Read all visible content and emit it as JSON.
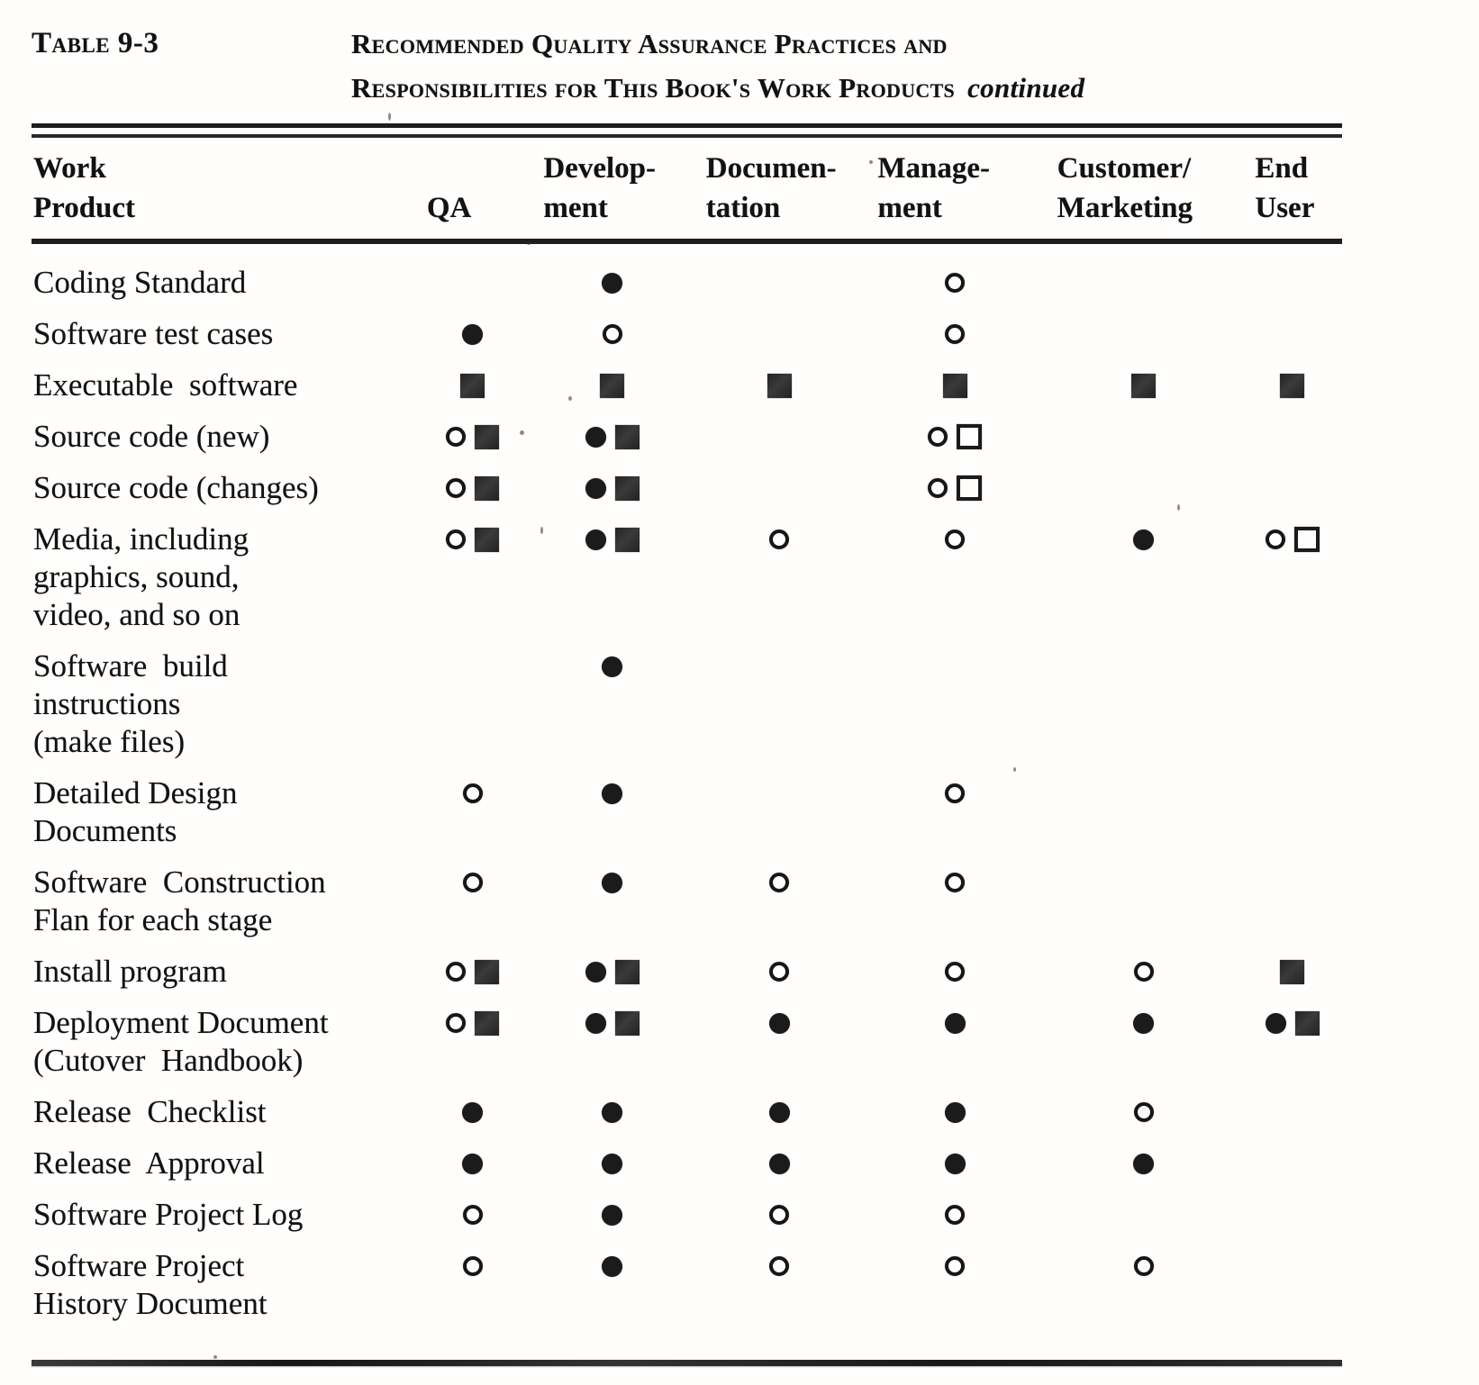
{
  "header": {
    "table_label": "Table 9-3",
    "title_line1": "Recommended Quality Assurance Practices and",
    "title_line2": "Responsibilities for This Book's Work Products",
    "continued_label": "continued"
  },
  "columns": [
    {
      "line1": "Work",
      "line2": "Product"
    },
    {
      "line1": "",
      "line2": "QA"
    },
    {
      "line1": "Develop-",
      "line2": "ment"
    },
    {
      "line1": "Documen-",
      "line2": "tation"
    },
    {
      "line1": "Manage-",
      "line2": "ment"
    },
    {
      "line1": "Customer/",
      "line2": "Marketing"
    },
    {
      "line1": "End",
      "line2": "User"
    }
  ],
  "symbols_used": [
    "filled-circle",
    "open-circle",
    "filled-square",
    "open-square"
  ],
  "rows": [
    {
      "label_lines": [
        "Coding Standard"
      ],
      "cells": [
        [],
        [
          "filled-circle"
        ],
        [],
        [
          "open-circle"
        ],
        [],
        []
      ]
    },
    {
      "label_lines": [
        "Software test cases"
      ],
      "cells": [
        [
          "filled-circle"
        ],
        [
          "open-circle"
        ],
        [],
        [
          "open-circle"
        ],
        [],
        []
      ]
    },
    {
      "label_lines": [
        "Executable  software"
      ],
      "cells": [
        [
          "filled-square"
        ],
        [
          "filled-square"
        ],
        [
          "filled-square"
        ],
        [
          "filled-square"
        ],
        [
          "filled-square"
        ],
        [
          "filled-square"
        ]
      ]
    },
    {
      "label_lines": [
        "Source code (new)"
      ],
      "cells": [
        [
          "open-circle",
          "filled-square"
        ],
        [
          "filled-circle",
          "filled-square"
        ],
        [],
        [
          "open-circle",
          "open-square"
        ],
        [],
        []
      ]
    },
    {
      "label_lines": [
        "Source code (changes)"
      ],
      "cells": [
        [
          "open-circle",
          "filled-square"
        ],
        [
          "filled-circle",
          "filled-square"
        ],
        [],
        [
          "open-circle",
          "open-square"
        ],
        [],
        []
      ]
    },
    {
      "label_lines": [
        "Media, including",
        "graphics, sound,",
        "video, and so on"
      ],
      "cells": [
        [
          "open-circle",
          "filled-square"
        ],
        [
          "filled-circle",
          "filled-square"
        ],
        [
          "open-circle"
        ],
        [
          "open-circle"
        ],
        [
          "filled-circle"
        ],
        [
          "open-circle",
          "open-square"
        ]
      ]
    },
    {
      "label_lines": [
        "Software  build",
        "instructions",
        "(make files)"
      ],
      "cells": [
        [],
        [
          "filled-circle"
        ],
        [],
        [],
        [],
        []
      ]
    },
    {
      "label_lines": [
        "Detailed Design",
        "Documents"
      ],
      "cells": [
        [
          "open-circle"
        ],
        [
          "filled-circle"
        ],
        [],
        [
          "open-circle"
        ],
        [],
        []
      ]
    },
    {
      "label_lines": [
        "Software  Construction",
        "Flan for each stage"
      ],
      "cells": [
        [
          "open-circle"
        ],
        [
          "filled-circle"
        ],
        [
          "open-circle"
        ],
        [
          "open-circle"
        ],
        [],
        []
      ]
    },
    {
      "label_lines": [
        "Install program"
      ],
      "cells": [
        [
          "open-circle",
          "filled-square"
        ],
        [
          "filled-circle",
          "filled-square"
        ],
        [
          "open-circle"
        ],
        [
          "open-circle"
        ],
        [
          "open-circle"
        ],
        [
          "filled-square"
        ]
      ]
    },
    {
      "label_lines": [
        "Deployment Document",
        "(Cutover  Handbook)"
      ],
      "cells": [
        [
          "open-circle",
          "filled-square"
        ],
        [
          "filled-circle",
          "filled-square"
        ],
        [
          "filled-circle"
        ],
        [
          "filled-circle"
        ],
        [
          "filled-circle"
        ],
        [
          "filled-circle",
          "filled-square"
        ]
      ]
    },
    {
      "label_lines": [
        "Release  Checklist"
      ],
      "cells": [
        [
          "filled-circle"
        ],
        [
          "filled-circle"
        ],
        [
          "filled-circle"
        ],
        [
          "filled-circle"
        ],
        [
          "open-circle"
        ],
        []
      ]
    },
    {
      "label_lines": [
        "Release  Approval"
      ],
      "cells": [
        [
          "filled-circle"
        ],
        [
          "filled-circle"
        ],
        [
          "filled-circle"
        ],
        [
          "filled-circle"
        ],
        [
          "filled-circle"
        ],
        []
      ]
    },
    {
      "label_lines": [
        "Software Project Log"
      ],
      "cells": [
        [
          "open-circle"
        ],
        [
          "filled-circle"
        ],
        [
          "open-circle"
        ],
        [
          "open-circle"
        ],
        [],
        []
      ]
    },
    {
      "label_lines": [
        "Software Project",
        "History Document"
      ],
      "cells": [
        [
          "open-circle"
        ],
        [
          "filled-circle"
        ],
        [
          "open-circle"
        ],
        [
          "open-circle"
        ],
        [
          "open-circle"
        ],
        []
      ]
    }
  ]
}
